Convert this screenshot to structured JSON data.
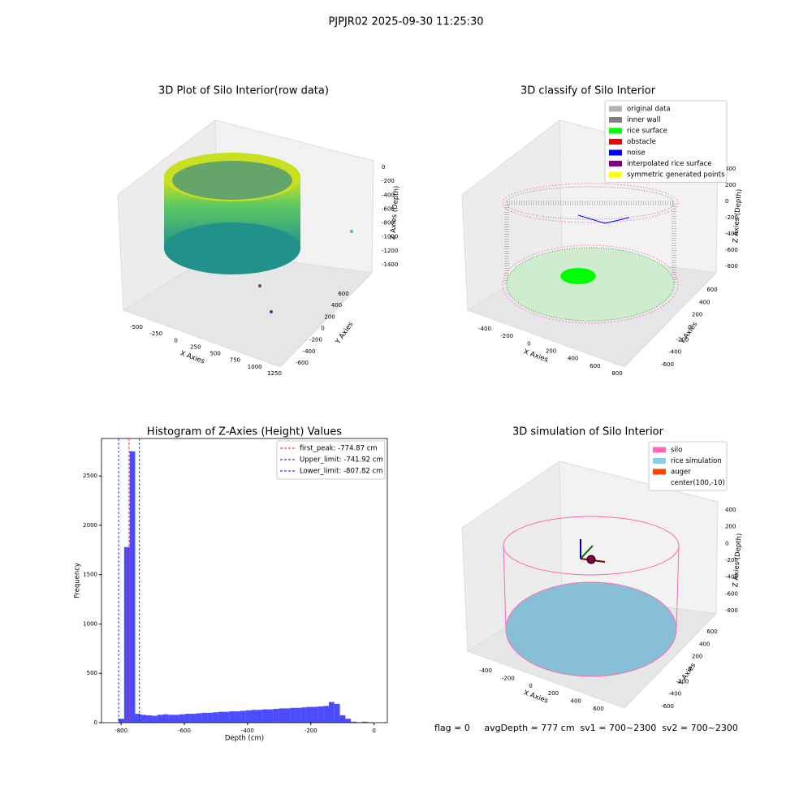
{
  "title": "PJPJR02 2025-09-30 11:25:30",
  "footer": "flag = 0     avgDepth = 777 cm  sv1 = 700~2300  sv2 = 700~2300",
  "chart_data": [
    {
      "type": "scatter3d",
      "title": "3D Plot of Silo Interior(row data)",
      "xlabel": "X Axies",
      "ylabel": "Y Axies",
      "zlabel": "Z Axies (Depth)",
      "xticks": [
        -500,
        -250,
        0,
        250,
        500,
        750,
        1000,
        1250
      ],
      "yticks": [
        600,
        400,
        200,
        0,
        -200,
        -400,
        -600
      ],
      "zticks": [
        -1400,
        -1200,
        -1000,
        -800,
        -600,
        -400,
        -200,
        0
      ]
    },
    {
      "type": "scatter3d",
      "title": "3D classify of Silo Interior",
      "xlabel": "X Axies",
      "ylabel": "Y Axies",
      "zlabel": "Z Axies (Depth)",
      "xticks": [
        -400,
        -200,
        0,
        200,
        400,
        600,
        800
      ],
      "yticks": [
        600,
        400,
        200,
        0,
        -200,
        -400,
        -600
      ],
      "zticks": [
        -800,
        -600,
        -400,
        -200,
        0,
        200,
        400
      ],
      "legend": [
        {
          "name": "original data",
          "color": "#b3b3b3"
        },
        {
          "name": "inner wall",
          "color": "#808080"
        },
        {
          "name": "rice surface",
          "color": "#00ff00"
        },
        {
          "name": "obstacle",
          "color": "#ff0000"
        },
        {
          "name": "noise",
          "color": "#0000ff"
        },
        {
          "name": "interpolated rice surface",
          "color": "#800080"
        },
        {
          "name": "symmetric generated points",
          "color": "#ffff00"
        }
      ]
    },
    {
      "type": "histogram",
      "title": "Histogram of Z-Axies (Height) Values",
      "xlabel": "Depth (cm)",
      "ylabel": "Frequency",
      "color": "#0000ff",
      "bins": [
        -808,
        -790.5,
        -773,
        -755.5,
        -738,
        -720.5,
        -703,
        -685.5,
        -668,
        -650.5,
        -633,
        -615.5,
        -598,
        -580.5,
        -563,
        -545.5,
        -528,
        -510.5,
        -493,
        -475.5,
        -458,
        -440.5,
        -423,
        -405.5,
        -388,
        -370.5,
        -353,
        -335.5,
        -318,
        -300.5,
        -283,
        -265.5,
        -248,
        -230.5,
        -213,
        -195.5,
        -178,
        -160.5,
        -143,
        -125.5,
        -108,
        -90.5,
        -73,
        -55.5,
        -38,
        -20.5,
        -3
      ],
      "counts": [
        40,
        1780,
        2750,
        90,
        80,
        75,
        70,
        80,
        85,
        80,
        80,
        85,
        90,
        90,
        95,
        100,
        100,
        105,
        110,
        110,
        115,
        115,
        120,
        125,
        130,
        130,
        135,
        135,
        140,
        145,
        145,
        150,
        150,
        155,
        160,
        160,
        165,
        170,
        210,
        190,
        75,
        40,
        10,
        5,
        10,
        5
      ],
      "xlim": [
        -862,
        42
      ],
      "ylim": [
        0,
        2880
      ],
      "xticks": [
        -800,
        -600,
        -400,
        -200,
        0
      ],
      "yticks": [
        0,
        500,
        1000,
        1500,
        2000,
        2500
      ],
      "lines": [
        {
          "name": "first_peak: -774.87 cm",
          "value": -774.87,
          "color": "#ff0000"
        },
        {
          "name": "Upper_limit: -741.92 cm",
          "value": -741.92,
          "color": "#0000ff"
        },
        {
          "name": "Lower_limit: -807.82 cm",
          "value": -807.82,
          "color": "#0000ff"
        }
      ]
    },
    {
      "type": "surface3d",
      "title": "3D simulation of Silo Interior",
      "xlabel": "X Axies",
      "ylabel": "Y Axies",
      "zlabel": "Z Axies (Depth)",
      "xticks": [
        -400,
        -200,
        0,
        200,
        400,
        600
      ],
      "yticks": [
        600,
        400,
        200,
        0,
        -200,
        -400,
        -600
      ],
      "zticks": [
        -800,
        -600,
        -400,
        -200,
        0,
        200,
        400
      ],
      "legend": [
        {
          "name": "silo",
          "color": "#ff69b4"
        },
        {
          "name": "rice simulation",
          "color": "#87ceeb"
        },
        {
          "name": "auger",
          "color": "#ff4500"
        },
        {
          "name": "center(100,-10)",
          "color": "#ffffff"
        }
      ]
    }
  ]
}
